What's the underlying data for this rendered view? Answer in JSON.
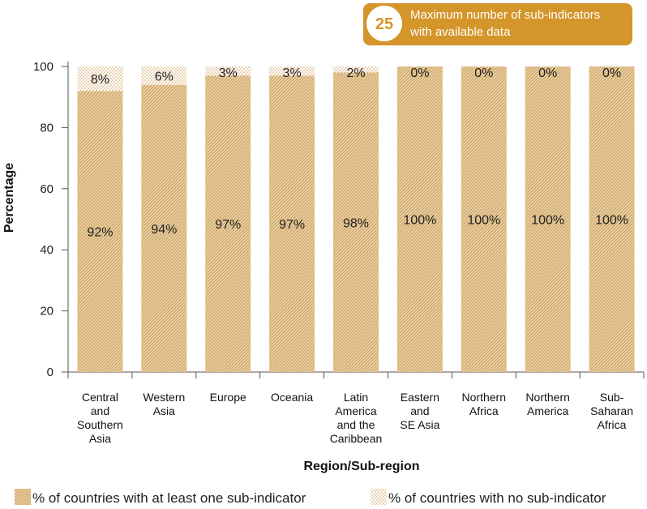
{
  "badge": {
    "number": "25",
    "text_line1": "Maximum number of sub-indicators",
    "text_line2": "with available data",
    "color": "#d4952a"
  },
  "chart_data": {
    "type": "bar",
    "stacked": true,
    "categories": [
      [
        "Central",
        "and",
        "Southern",
        "Asia"
      ],
      [
        "Western",
        "Asia"
      ],
      [
        "Europe"
      ],
      [
        "Oceania"
      ],
      [
        "Latin",
        "America",
        "and the",
        "Caribbean"
      ],
      [
        "Eastern",
        "and",
        "SE Asia"
      ],
      [
        "Northern",
        "Africa"
      ],
      [
        "Northern",
        "America"
      ],
      [
        "Sub-",
        "Saharan",
        "Africa"
      ]
    ],
    "series": [
      {
        "name": "% of countries with at least one sub-indicator",
        "values": [
          92,
          94,
          97,
          97,
          98,
          100,
          100,
          100,
          100
        ],
        "labels": [
          "92%",
          "94%",
          "97%",
          "97%",
          "98%",
          "100%",
          "100%",
          "100%",
          "100%"
        ],
        "pattern": "hatched",
        "color": "#d4a86a"
      },
      {
        "name": "% of countries with no sub-indicator",
        "values": [
          8,
          6,
          3,
          3,
          2,
          0,
          0,
          0,
          0
        ],
        "labels": [
          "8%",
          "6%",
          "3%",
          "3%",
          "2%",
          "0%",
          "0%",
          "0%",
          "0%"
        ],
        "pattern": "dotted",
        "color": "#d4a86a"
      }
    ],
    "xlabel": "Region/Sub-region",
    "ylabel": "Percentage",
    "ylim": [
      0,
      100
    ],
    "yticks": [
      0,
      20,
      40,
      60,
      80,
      100
    ],
    "grid": false,
    "legend_position": "bottom"
  }
}
